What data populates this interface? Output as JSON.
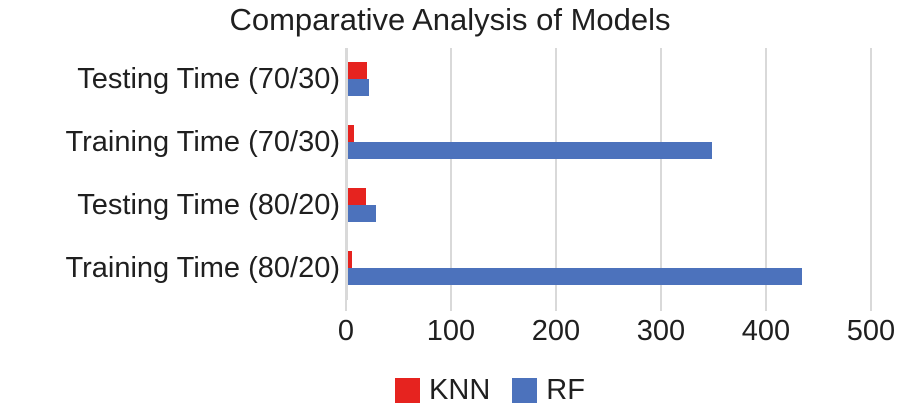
{
  "title": "Comparative Analysis of Models",
  "chart_data": {
    "type": "bar",
    "orientation": "horizontal",
    "title": "Comparative Analysis of Models",
    "categories": [
      "Testing Time (70/30)",
      "Training Time (70/30)",
      "Testing Time (80/20)",
      "Training Time (80/20)"
    ],
    "series": [
      {
        "name": "KNN",
        "color": "#e6231f",
        "values": [
          18,
          6,
          17,
          4
        ]
      },
      {
        "name": "RF",
        "color": "#4c72bc",
        "values": [
          20,
          347,
          27,
          432
        ]
      }
    ],
    "xlim": [
      0,
      500
    ],
    "x_ticks": [
      0,
      100,
      200,
      300,
      400,
      500
    ],
    "grid": true,
    "legend_position": "bottom",
    "gridline_color": "#d9d9d9",
    "text_color": "#1f1f1f",
    "background_color": "#ffffff"
  }
}
